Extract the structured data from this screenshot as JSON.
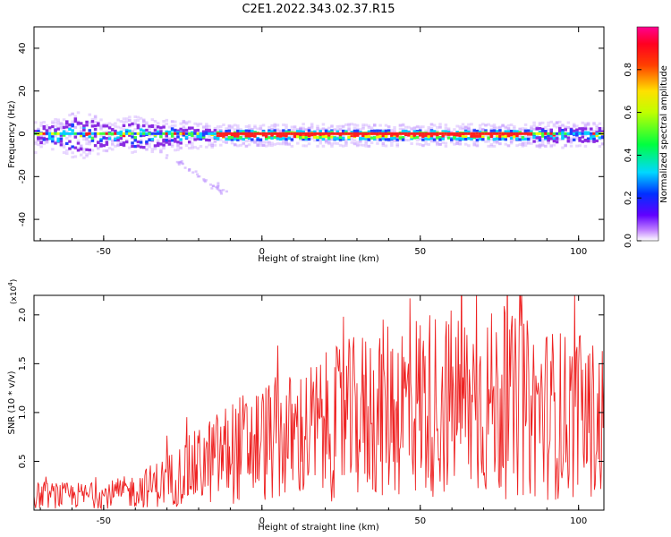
{
  "title": "C2E1.2022.343.02.37.R15",
  "colors": {
    "snr_line": "#ee2222",
    "frame": "#000000"
  },
  "chart_data": [
    {
      "type": "heatmap",
      "xlabel": "Height of straight line (km)",
      "ylabel": "Frequency (Hz)",
      "xlim": [
        -72,
        108
      ],
      "ylim": [
        -50,
        50
      ],
      "xticks": [
        "-50",
        "0",
        "50",
        "100"
      ],
      "xtick_values": [
        -50,
        0,
        50,
        100
      ],
      "yticks": [
        "-40",
        "-20",
        "0",
        "20",
        "40"
      ],
      "ytick_values": [
        -40,
        -20,
        0,
        20,
        40
      ],
      "colorbar": {
        "label": "Normalized spectral amplitude",
        "range": [
          0,
          1
        ],
        "ticks": [
          "0.0",
          "0.2",
          "0.4",
          "0.6",
          "0.8"
        ],
        "tick_values": [
          0.0,
          0.2,
          0.4,
          0.6,
          0.8
        ],
        "colormap": "rainbow (white-purple-blue-cyan-green-yellow-red-magenta)"
      },
      "band": {
        "center_hz": 0,
        "strong_region_km": [
          -15,
          85
        ],
        "spread_hz_at_low_heights": 8,
        "faint_tail": {
          "from_km": [
            -30,
            -10
          ],
          "to_km": [
            -12,
            -27
          ]
        }
      }
    },
    {
      "type": "line",
      "xlabel": "Height of straight line (km)",
      "ylabel": "SNR (10 * v/v)",
      "y_multiplier": "(x10",
      "y_multiplier_exp": "4",
      "y_multiplier_close": ")",
      "xlim": [
        -72,
        108
      ],
      "ylim": [
        0,
        2.2
      ],
      "xticks": [
        "-50",
        "0",
        "50",
        "100"
      ],
      "xtick_values": [
        -50,
        0,
        50,
        100
      ],
      "yticks": [
        "0.5",
        "1.0",
        "1.5",
        "2.0"
      ],
      "ytick_values": [
        0.5,
        1.0,
        1.5,
        2.0
      ],
      "series": [
        {
          "color": "#ee2222",
          "trend_x": [
            -72,
            -50,
            -40,
            -30,
            -20,
            -10,
            0,
            10,
            20,
            30,
            40,
            50,
            60,
            70,
            80,
            90,
            100,
            108
          ],
          "trend_y": [
            0.15,
            0.15,
            0.2,
            0.3,
            0.45,
            0.6,
            0.7,
            0.75,
            0.85,
            0.95,
            1.05,
            1.1,
            1.1,
            1.1,
            1.05,
            1.0,
            0.95,
            0.9
          ]
        }
      ]
    }
  ]
}
